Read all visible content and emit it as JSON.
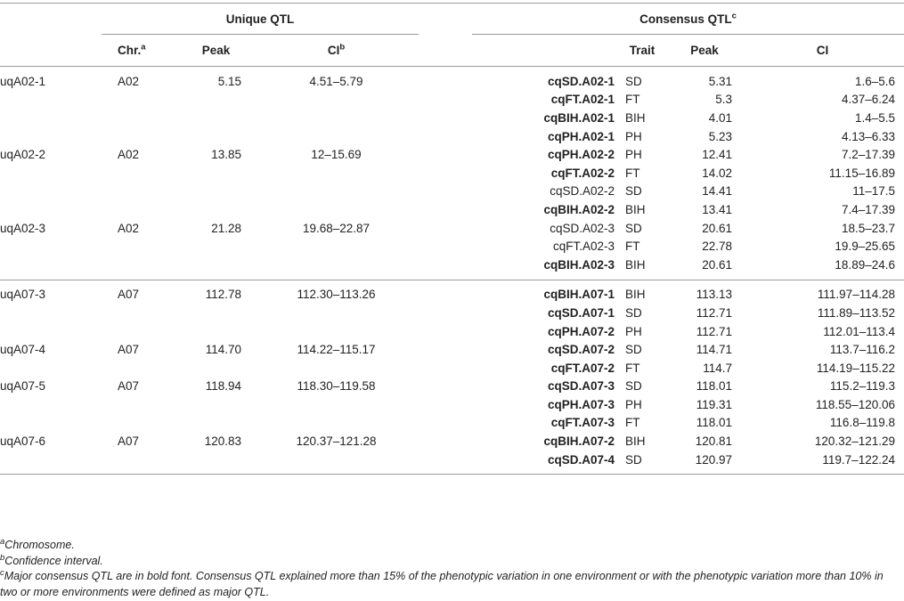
{
  "header": {
    "unique_title": "Unique QTL",
    "consensus_title": "Consensus QTL",
    "consensus_sup": "c",
    "chr_label": "Chr.",
    "chr_sup": "a",
    "peak_label": "Peak",
    "ci_label": "CI",
    "ci_sup": "b",
    "trait_label": "Trait",
    "cpeak_label": "Peak",
    "cci_label": "CI"
  },
  "rows": [
    {
      "uq": "uqA02-1",
      "chr": "A02",
      "peak": "5.15",
      "ci": "4.51–5.79",
      "cq": "cqSD.A02-1",
      "bold": true,
      "trait": "SD",
      "cpeak": "5.31",
      "cci": "1.6–5.6"
    },
    {
      "uq": "",
      "chr": "",
      "peak": "",
      "ci": "",
      "cq": "cqFT.A02-1",
      "bold": true,
      "trait": "FT",
      "cpeak": "5.3",
      "cci": "4.37–6.24"
    },
    {
      "uq": "",
      "chr": "",
      "peak": "",
      "ci": "",
      "cq": "cqBIH.A02-1",
      "bold": true,
      "trait": "BIH",
      "cpeak": "4.01",
      "cci": "1.4–5.5"
    },
    {
      "uq": "",
      "chr": "",
      "peak": "",
      "ci": "",
      "cq": "cqPH.A02-1",
      "bold": true,
      "trait": "PH",
      "cpeak": "5.23",
      "cci": "4.13–6.33"
    },
    {
      "uq": "uqA02-2",
      "chr": "A02",
      "peak": "13.85",
      "ci": "12–15.69",
      "cq": "cqPH.A02-2",
      "bold": true,
      "trait": "PH",
      "cpeak": "12.41",
      "cci": "7.2–17.39"
    },
    {
      "uq": "",
      "chr": "",
      "peak": "",
      "ci": "",
      "cq": "cqFT.A02-2",
      "bold": true,
      "trait": "FT",
      "cpeak": "14.02",
      "cci": "11.15–16.89"
    },
    {
      "uq": "",
      "chr": "",
      "peak": "",
      "ci": "",
      "cq": "cqSD.A02-2",
      "bold": false,
      "trait": "SD",
      "cpeak": "14.41",
      "cci": "11–17.5"
    },
    {
      "uq": "",
      "chr": "",
      "peak": "",
      "ci": "",
      "cq": "cqBIH.A02-2",
      "bold": true,
      "trait": "BIH",
      "cpeak": "13.41",
      "cci": "7.4–17.39"
    },
    {
      "uq": "uqA02-3",
      "chr": "A02",
      "peak": "21.28",
      "ci": "19.68–22.87",
      "cq": "cqSD.A02-3",
      "bold": false,
      "trait": "SD",
      "cpeak": "20.61",
      "cci": "18.5–23.7"
    },
    {
      "uq": "",
      "chr": "",
      "peak": "",
      "ci": "",
      "cq": "cqFT.A02-3",
      "bold": false,
      "trait": "FT",
      "cpeak": "22.78",
      "cci": "19.9–25.65"
    },
    {
      "uq": "",
      "chr": "",
      "peak": "",
      "ci": "",
      "cq": "cqBIH.A02-3",
      "bold": true,
      "trait": "BIH",
      "cpeak": "20.61",
      "cci": "18.89–24.6"
    },
    {
      "uq": "uqA07-3",
      "chr": "A07",
      "peak": "112.78",
      "ci": "112.30–113.26",
      "cq": "cqBIH.A07-1",
      "bold": true,
      "trait": "BIH",
      "cpeak": "113.13",
      "cci": "111.97–114.28"
    },
    {
      "uq": "",
      "chr": "",
      "peak": "",
      "ci": "",
      "cq": "cqSD.A07-1",
      "bold": true,
      "trait": "SD",
      "cpeak": "112.71",
      "cci": "111.89–113.52"
    },
    {
      "uq": "",
      "chr": "",
      "peak": "",
      "ci": "",
      "cq": "cqPH.A07-2",
      "bold": true,
      "trait": "PH",
      "cpeak": "112.71",
      "cci": "112.01–113.4"
    },
    {
      "uq": "uqA07-4",
      "chr": "A07",
      "peak": "114.70",
      "ci": "114.22–115.17",
      "cq": "cqSD.A07-2",
      "bold": true,
      "trait": "SD",
      "cpeak": "114.71",
      "cci": "113.7–116.2"
    },
    {
      "uq": "",
      "chr": "",
      "peak": "",
      "ci": "",
      "cq": "cqFT.A07-2",
      "bold": true,
      "trait": "FT",
      "cpeak": "114.7",
      "cci": "114.19–115.22"
    },
    {
      "uq": "uqA07-5",
      "chr": "A07",
      "peak": "118.94",
      "ci": "118.30–119.58",
      "cq": "cqSD.A07-3",
      "bold": true,
      "trait": "SD",
      "cpeak": "118.01",
      "cci": "115.2–119.3"
    },
    {
      "uq": "",
      "chr": "",
      "peak": "",
      "ci": "",
      "cq": "cqPH.A07-3",
      "bold": true,
      "trait": "PH",
      "cpeak": "119.31",
      "cci": "118.55–120.06"
    },
    {
      "uq": "",
      "chr": "",
      "peak": "",
      "ci": "",
      "cq": "cqFT.A07-3",
      "bold": true,
      "trait": "FT",
      "cpeak": "118.01",
      "cci": "116.8–119.8"
    },
    {
      "uq": "uqA07-6",
      "chr": "A07",
      "peak": "120.83",
      "ci": "120.37–121.28",
      "cq": "cqBIH.A07-2",
      "bold": true,
      "trait": "BIH",
      "cpeak": "120.81",
      "cci": "120.32–121.29"
    },
    {
      "uq": "",
      "chr": "",
      "peak": "",
      "ci": "",
      "cq": "cqSD.A07-4",
      "bold": true,
      "trait": "SD",
      "cpeak": "120.97",
      "cci": "119.7–122.24"
    }
  ],
  "footnotes": {
    "a_mark": "a",
    "a_text": "Chromosome.",
    "b_mark": "b",
    "b_text": "Confidence interval.",
    "c_mark": "c",
    "c_text": "Major consensus QTL are in bold font. Consensus QTL explained more than 15% of the phenotypic variation in one environment or with the phenotypic variation more than 10% in two or more environments were defined as major QTL."
  }
}
